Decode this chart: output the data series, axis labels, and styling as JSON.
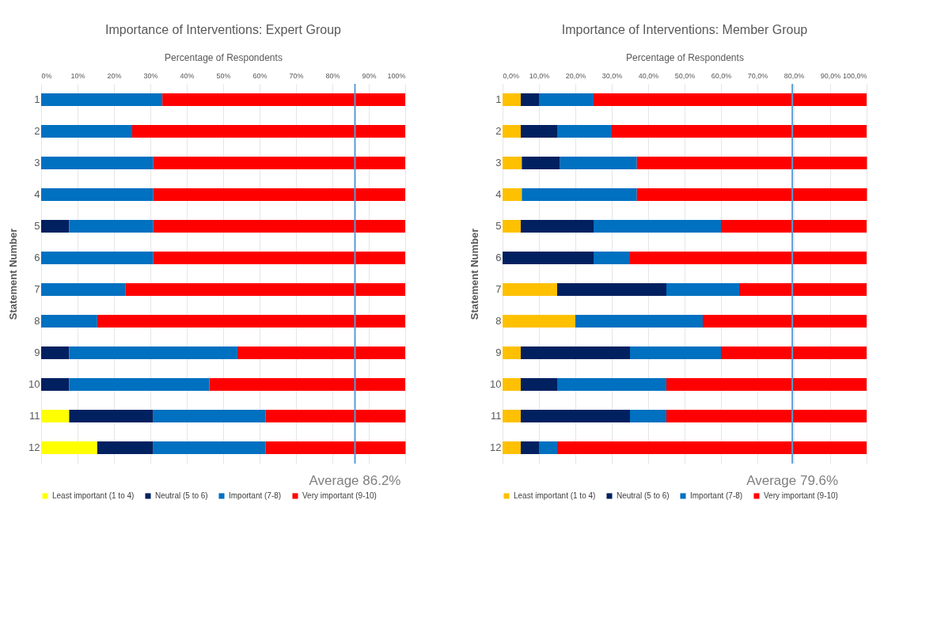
{
  "chart_data": [
    {
      "type": "bar",
      "title": "Importance of Interventions: Expert Group",
      "xlabel": "Percentage of Respondents",
      "ylabel": "Statement Number",
      "orientation": "horizontal",
      "stacked": true,
      "categories": [
        "1",
        "2",
        "3",
        "4",
        "5",
        "6",
        "7",
        "8",
        "9",
        "10",
        "11",
        "12"
      ],
      "series": [
        {
          "name": "Least important (1 to 4)",
          "color": "#ffff00",
          "values": [
            0,
            0,
            0,
            0,
            0,
            0,
            0,
            0,
            0,
            0,
            7.7,
            15.4
          ]
        },
        {
          "name": "Neutral (5 to 6)",
          "color": "#002060",
          "values": [
            0,
            0,
            0,
            0,
            7.7,
            0,
            0,
            0,
            7.7,
            7.7,
            23.1,
            15.4
          ]
        },
        {
          "name": "Important (7-8)",
          "color": "#0070c0",
          "values": [
            33.3,
            25.0,
            30.8,
            30.8,
            23.1,
            30.8,
            23.1,
            15.4,
            46.2,
            38.5,
            30.8,
            30.8
          ]
        },
        {
          "name": "Very important (9-10)",
          "color": "#ff0000",
          "values": [
            66.7,
            75.0,
            69.2,
            69.2,
            69.2,
            69.2,
            76.9,
            84.6,
            46.1,
            53.8,
            38.5,
            38.5
          ]
        }
      ],
      "xlim": [
        0,
        100
      ],
      "xticks": [
        {
          "value": 0,
          "label": "0%"
        },
        {
          "value": 10,
          "label": "10%"
        },
        {
          "value": 20,
          "label": "20%"
        },
        {
          "value": 30,
          "label": "30%"
        },
        {
          "value": 40,
          "label": "40%"
        },
        {
          "value": 50,
          "label": "50%"
        },
        {
          "value": 60,
          "label": "60%"
        },
        {
          "value": 70,
          "label": "70%"
        },
        {
          "value": 80,
          "label": "80%"
        },
        {
          "value": 90,
          "label": "90%"
        },
        {
          "value": 100,
          "label": "100%"
        }
      ],
      "grid": "x",
      "legend": "bottom",
      "ref_lines": [
        {
          "axis": "x",
          "value": 86.2,
          "label": "Average 86.2%",
          "color": "#5b9bd5"
        }
      ]
    },
    {
      "type": "bar",
      "title": "Importance of Interventions: Member Group",
      "xlabel": "Percentage of Respondents",
      "ylabel": "Statement Number",
      "orientation": "horizontal",
      "stacked": true,
      "categories": [
        "1",
        "2",
        "3",
        "4",
        "5",
        "6",
        "7",
        "8",
        "9",
        "10",
        "11",
        "12"
      ],
      "series": [
        {
          "name": "Least important (1 to 4)",
          "color": "#ffc000",
          "values": [
            5,
            5,
            5.3,
            5.3,
            5,
            0,
            15,
            20,
            5,
            5,
            5,
            5
          ]
        },
        {
          "name": "Neutral (5 to 6)",
          "color": "#002060",
          "values": [
            5,
            10,
            10.5,
            0,
            20,
            25,
            30,
            0,
            30,
            10,
            30,
            5
          ]
        },
        {
          "name": "Important (7-8)",
          "color": "#0070c0",
          "values": [
            15,
            15,
            21.1,
            31.6,
            35,
            10,
            20,
            35,
            25,
            30,
            10,
            5
          ]
        },
        {
          "name": "Very important (9-10)",
          "color": "#ff0000",
          "values": [
            75,
            70,
            63.2,
            63.2,
            40,
            65,
            35,
            45,
            40,
            55,
            55,
            85
          ]
        }
      ],
      "xlim": [
        0,
        100
      ],
      "xticks": [
        {
          "value": 0,
          "label": "0,0%"
        },
        {
          "value": 10,
          "label": "10,0%"
        },
        {
          "value": 20,
          "label": "20,0%"
        },
        {
          "value": 30,
          "label": "30,0%"
        },
        {
          "value": 40,
          "label": "40,0%"
        },
        {
          "value": 50,
          "label": "50,0%"
        },
        {
          "value": 60,
          "label": "60,0%"
        },
        {
          "value": 70,
          "label": "70,0%"
        },
        {
          "value": 80,
          "label": "80,0%"
        },
        {
          "value": 90,
          "label": "90,0%"
        },
        {
          "value": 100,
          "label": "100,0%"
        }
      ],
      "grid": "x",
      "legend": "bottom",
      "ref_lines": [
        {
          "axis": "x",
          "value": 79.6,
          "label": "Average 79.6%",
          "color": "#5b9bd5"
        }
      ]
    }
  ]
}
